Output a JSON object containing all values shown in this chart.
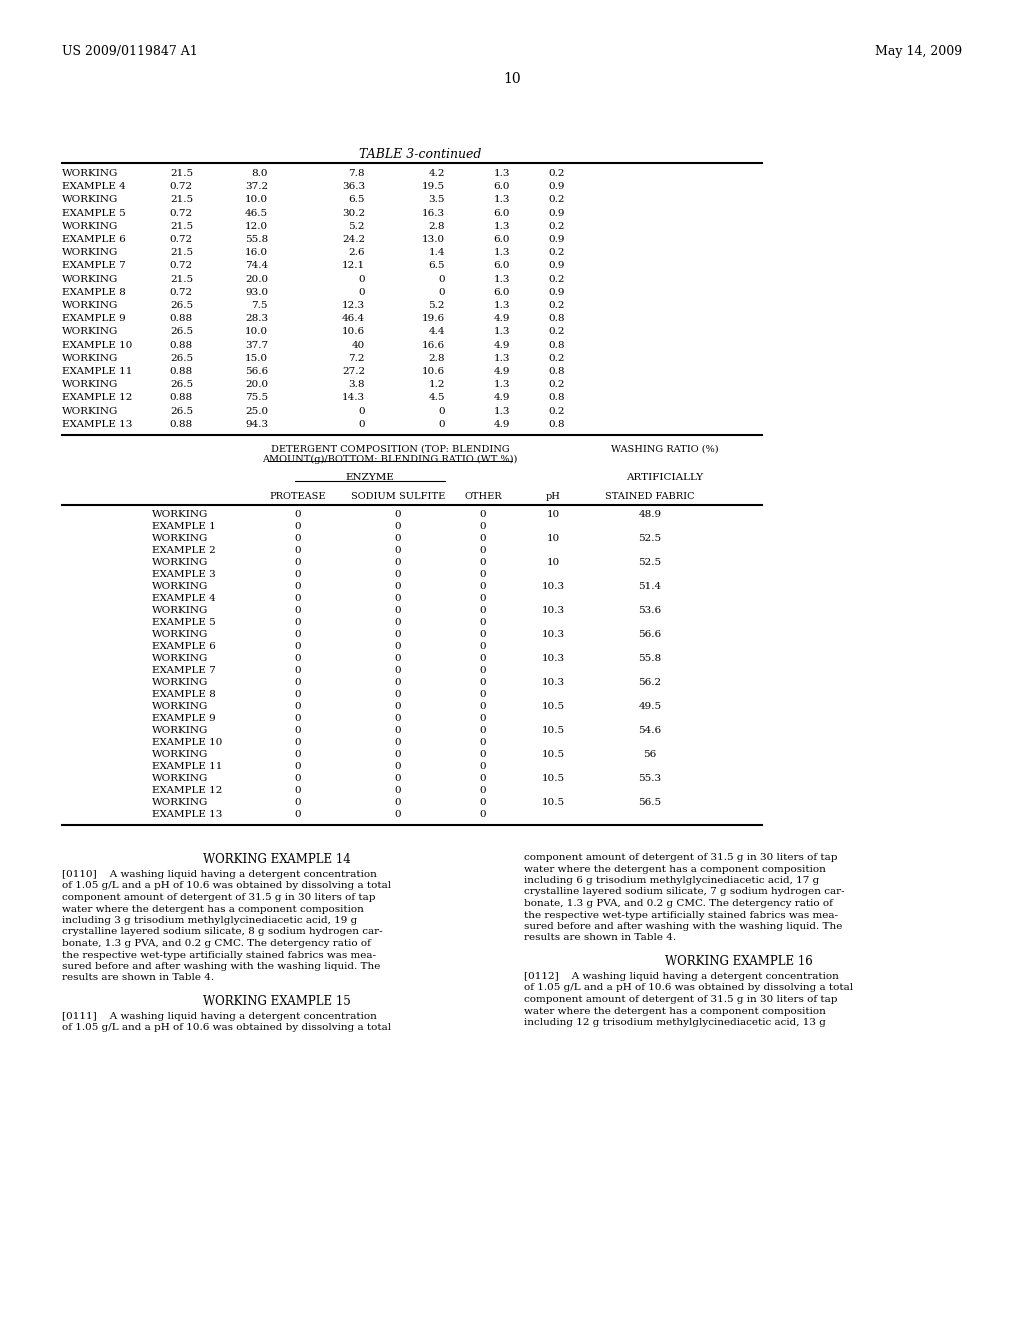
{
  "header_left": "US 2009/0119847 A1",
  "header_right": "May 14, 2009",
  "page_number": "10",
  "table3_title": "TABLE 3-continued",
  "table3_rows": [
    [
      "WORKING",
      "21.5",
      "8.0",
      "7.8",
      "4.2",
      "1.3",
      "0.2"
    ],
    [
      "EXAMPLE 4",
      "0.72",
      "37.2",
      "36.3",
      "19.5",
      "6.0",
      "0.9"
    ],
    [
      "WORKING",
      "21.5",
      "10.0",
      "6.5",
      "3.5",
      "1.3",
      "0.2"
    ],
    [
      "EXAMPLE 5",
      "0.72",
      "46.5",
      "30.2",
      "16.3",
      "6.0",
      "0.9"
    ],
    [
      "WORKING",
      "21.5",
      "12.0",
      "5.2",
      "2.8",
      "1.3",
      "0.2"
    ],
    [
      "EXAMPLE 6",
      "0.72",
      "55.8",
      "24.2",
      "13.0",
      "6.0",
      "0.9"
    ],
    [
      "WORKING",
      "21.5",
      "16.0",
      "2.6",
      "1.4",
      "1.3",
      "0.2"
    ],
    [
      "EXAMPLE 7",
      "0.72",
      "74.4",
      "12.1",
      "6.5",
      "6.0",
      "0.9"
    ],
    [
      "WORKING",
      "21.5",
      "20.0",
      "0",
      "0",
      "1.3",
      "0.2"
    ],
    [
      "EXAMPLE 8",
      "0.72",
      "93.0",
      "0",
      "0",
      "6.0",
      "0.9"
    ],
    [
      "WORKING",
      "26.5",
      "7.5",
      "12.3",
      "5.2",
      "1.3",
      "0.2"
    ],
    [
      "EXAMPLE 9",
      "0.88",
      "28.3",
      "46.4",
      "19.6",
      "4.9",
      "0.8"
    ],
    [
      "WORKING",
      "26.5",
      "10.0",
      "10.6",
      "4.4",
      "1.3",
      "0.2"
    ],
    [
      "EXAMPLE 10",
      "0.88",
      "37.7",
      "40",
      "16.6",
      "4.9",
      "0.8"
    ],
    [
      "WORKING",
      "26.5",
      "15.0",
      "7.2",
      "2.8",
      "1.3",
      "0.2"
    ],
    [
      "EXAMPLE 11",
      "0.88",
      "56.6",
      "27.2",
      "10.6",
      "4.9",
      "0.8"
    ],
    [
      "WORKING",
      "26.5",
      "20.0",
      "3.8",
      "1.2",
      "1.3",
      "0.2"
    ],
    [
      "EXAMPLE 12",
      "0.88",
      "75.5",
      "14.3",
      "4.5",
      "4.9",
      "0.8"
    ],
    [
      "WORKING",
      "26.5",
      "25.0",
      "0",
      "0",
      "1.3",
      "0.2"
    ],
    [
      "EXAMPLE 13",
      "0.88",
      "94.3",
      "0",
      "0",
      "4.9",
      "0.8"
    ]
  ],
  "table4_header1": "DETERGENT COMPOSITION (TOP: BLENDING",
  "table4_header2": "AMOUNT(g)/BOTTOM: BLENDING RATIO (WT %))",
  "table4_header3": "WASHING RATIO (%)",
  "table4_enzyme": "ENZYME",
  "table4_artificially": "ARTIFICIALLY",
  "table4_rows": [
    [
      "WORKING",
      "0",
      "0",
      "0",
      "10",
      "48.9"
    ],
    [
      "EXAMPLE 1",
      "0",
      "0",
      "0",
      "",
      ""
    ],
    [
      "WORKING",
      "0",
      "0",
      "0",
      "10",
      "52.5"
    ],
    [
      "EXAMPLE 2",
      "0",
      "0",
      "0",
      "",
      ""
    ],
    [
      "WORKING",
      "0",
      "0",
      "0",
      "10",
      "52.5"
    ],
    [
      "EXAMPLE 3",
      "0",
      "0",
      "0",
      "",
      ""
    ],
    [
      "WORKING",
      "0",
      "0",
      "0",
      "10.3",
      "51.4"
    ],
    [
      "EXAMPLE 4",
      "0",
      "0",
      "0",
      "",
      ""
    ],
    [
      "WORKING",
      "0",
      "0",
      "0",
      "10.3",
      "53.6"
    ],
    [
      "EXAMPLE 5",
      "0",
      "0",
      "0",
      "",
      ""
    ],
    [
      "WORKING",
      "0",
      "0",
      "0",
      "10.3",
      "56.6"
    ],
    [
      "EXAMPLE 6",
      "0",
      "0",
      "0",
      "",
      ""
    ],
    [
      "WORKING",
      "0",
      "0",
      "0",
      "10.3",
      "55.8"
    ],
    [
      "EXAMPLE 7",
      "0",
      "0",
      "0",
      "",
      ""
    ],
    [
      "WORKING",
      "0",
      "0",
      "0",
      "10.3",
      "56.2"
    ],
    [
      "EXAMPLE 8",
      "0",
      "0",
      "0",
      "",
      ""
    ],
    [
      "WORKING",
      "0",
      "0",
      "0",
      "10.5",
      "49.5"
    ],
    [
      "EXAMPLE 9",
      "0",
      "0",
      "0",
      "",
      ""
    ],
    [
      "WORKING",
      "0",
      "0",
      "0",
      "10.5",
      "54.6"
    ],
    [
      "EXAMPLE 10",
      "0",
      "0",
      "0",
      "",
      ""
    ],
    [
      "WORKING",
      "0",
      "0",
      "0",
      "10.5",
      "56"
    ],
    [
      "EXAMPLE 11",
      "0",
      "0",
      "0",
      "",
      ""
    ],
    [
      "WORKING",
      "0",
      "0",
      "0",
      "10.5",
      "55.3"
    ],
    [
      "EXAMPLE 12",
      "0",
      "0",
      "0",
      "",
      ""
    ],
    [
      "WORKING",
      "0",
      "0",
      "0",
      "10.5",
      "56.5"
    ],
    [
      "EXAMPLE 13",
      "0",
      "0",
      "0",
      "",
      ""
    ]
  ],
  "text_blocks": [
    {
      "title": "WORKING EXAMPLE 14",
      "col": 0,
      "paras": [
        "[0110]  A washing liquid having a detergent concentration of 1.05 g/L and a pH of 10.6 was obtained by dissolving a total component amount of detergent of 31.5 g in 30 liters of tap water where the detergent has a component composition including 3 g trisodium methylglycinediacetic acid, 19 g crystalline layered sodium silicate, 8 g sodium hydrogen carbonate, 1.3 g PVA, and 0.2 g CMC. The detergency ratio of the respective wet-type artificially stained fabrics was measured before and after washing with the washing liquid. The results are shown in Table 4."
      ]
    },
    {
      "title": "WORKING EXAMPLE 15",
      "col": 0,
      "paras": [
        "[0111]  A washing liquid having a detergent concentration of 1.05 g/L and a pH of 10.6 was obtained by dissolving a total"
      ]
    },
    {
      "title": "WORKING EXAMPLE 16",
      "col": 1,
      "paras": [
        "component amount of detergent of 31.5 g in 30 liters of tap water where the detergent has a component composition including 6 g trisodium methylglycinediacetic acid, 17 g crystalline layered sodium silicate, 7 g sodium hydrogen carbonate, 1.3 g PVA, and 0.2 g CMC. The detergency ratio of the respective wet-type artificially stained fabrics was measured before and after washing with the washing liquid. The results are shown in Table 4."
      ]
    },
    {
      "title_only_col1": "WORKING EXAMPLE 16",
      "col": 1,
      "paras": [
        "[0112]  A washing liquid having a detergent concentration of 1.05 g/L and a pH of 10.6 was obtained by dissolving a total component amount of detergent of 31.5 g in 30 liters of tap water where the detergent has a component composition including 12 g trisodium methylglycinediacetic acid, 13 g"
      ]
    }
  ]
}
